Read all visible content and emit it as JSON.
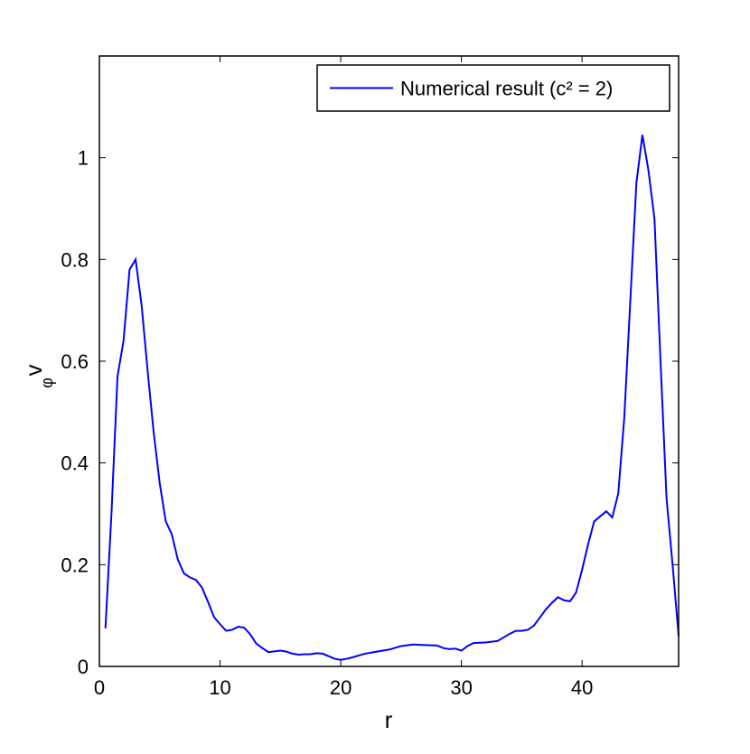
{
  "chart_data": {
    "type": "line",
    "xlabel": "r",
    "ylabel": "v",
    "ylabel_sub": "φ",
    "x": [
      0.5,
      1,
      1.5,
      2,
      2.5,
      3,
      3.5,
      4,
      4.5,
      5,
      5.5,
      6,
      6.5,
      7,
      7.5,
      8,
      8.5,
      9,
      9.5,
      10,
      10.5,
      11,
      11.5,
      12,
      12.5,
      13,
      13.5,
      14,
      15,
      15.5,
      16,
      16.5,
      17,
      17.5,
      18,
      18.5,
      19,
      19.5,
      20,
      20.5,
      21,
      22,
      23,
      24,
      25,
      26,
      27,
      28,
      28.5,
      29,
      29.5,
      30,
      30.5,
      31,
      32,
      33,
      34,
      34.5,
      35,
      35.5,
      36,
      36.5,
      37,
      37.5,
      38,
      38.5,
      39,
      39.5,
      40,
      40.5,
      41,
      41.5,
      42,
      42.5,
      43,
      43.5,
      44,
      44.5,
      45,
      45.5,
      46,
      46.5,
      47,
      47.5,
      48
    ],
    "series": [
      {
        "name": "Numerical result (c² = 2)",
        "color": "#0000ff",
        "values": [
          0.075,
          0.3,
          0.57,
          0.64,
          0.78,
          0.8,
          0.71,
          0.58,
          0.46,
          0.36,
          0.285,
          0.26,
          0.21,
          0.183,
          0.175,
          0.17,
          0.155,
          0.127,
          0.097,
          0.083,
          0.07,
          0.072,
          0.078,
          0.076,
          0.063,
          0.045,
          0.036,
          0.028,
          0.031,
          0.029,
          0.025,
          0.023,
          0.024,
          0.024,
          0.026,
          0.025,
          0.02,
          0.015,
          0.013,
          0.015,
          0.018,
          0.025,
          0.029,
          0.033,
          0.04,
          0.043,
          0.042,
          0.041,
          0.036,
          0.034,
          0.035,
          0.031,
          0.04,
          0.046,
          0.047,
          0.05,
          0.064,
          0.07,
          0.07,
          0.072,
          0.08,
          0.096,
          0.112,
          0.125,
          0.136,
          0.13,
          0.128,
          0.145,
          0.19,
          0.24,
          0.285,
          0.295,
          0.305,
          0.293,
          0.34,
          0.49,
          0.72,
          0.95,
          1.045,
          0.975,
          0.88,
          0.6,
          0.33,
          0.2,
          0.06
        ]
      }
    ],
    "xlim": [
      0,
      48
    ],
    "ylim": [
      0,
      1.2
    ],
    "xticks": [
      0,
      10,
      20,
      30,
      40
    ],
    "yticks": [
      0,
      0.2,
      0.4,
      0.6,
      0.8,
      1
    ],
    "legend": "upper right"
  }
}
